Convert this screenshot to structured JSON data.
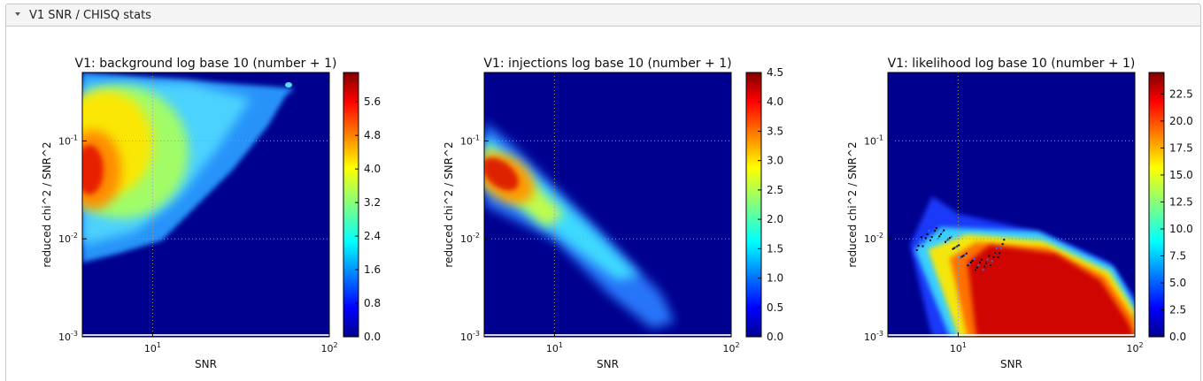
{
  "panel": {
    "title": "V1 SNR / CHISQ stats"
  },
  "chart_data": [
    {
      "type": "heatmap",
      "title": "V1: background log base 10 (number + 1)",
      "xlabel": "SNR",
      "ylabel": "reduced chi^2 / SNR^2",
      "xscale": "log",
      "yscale": "log",
      "xlim": [
        4,
        100
      ],
      "ylim": [
        0.001,
        0.5
      ],
      "xticks": [
        {
          "base": "10",
          "exp": "1",
          "value": 10
        },
        {
          "base": "10",
          "exp": "2",
          "value": 100
        }
      ],
      "yticks": [
        {
          "base": "10",
          "exp": "-1",
          "value": 0.1
        },
        {
          "base": "10",
          "exp": "-2",
          "value": 0.01
        },
        {
          "base": "10",
          "exp": "-3",
          "value": 0.001
        }
      ],
      "grid": true,
      "colorbar": {
        "min": 0,
        "max": 6.3,
        "ticks": [
          "0.0",
          "0.8",
          "1.6",
          "2.4",
          "3.2",
          "4.0",
          "4.8",
          "5.6"
        ]
      },
      "colormap": "jet"
    },
    {
      "type": "heatmap",
      "title": "V1: injections log base 10 (number + 1)",
      "xlabel": "SNR",
      "ylabel": "reduced chi^2 / SNR^2",
      "xscale": "log",
      "yscale": "log",
      "xlim": [
        4,
        100
      ],
      "ylim": [
        0.001,
        0.5
      ],
      "xticks": [
        {
          "base": "10",
          "exp": "1",
          "value": 10
        },
        {
          "base": "10",
          "exp": "2",
          "value": 100
        }
      ],
      "yticks": [
        {
          "base": "10",
          "exp": "-1",
          "value": 0.1
        },
        {
          "base": "10",
          "exp": "-2",
          "value": 0.01
        },
        {
          "base": "10",
          "exp": "-3",
          "value": 0.001
        }
      ],
      "grid": true,
      "colorbar": {
        "min": 0,
        "max": 4.5,
        "ticks": [
          "0.0",
          "0.5",
          "1.0",
          "1.5",
          "2.0",
          "2.5",
          "3.0",
          "3.5",
          "4.0",
          "4.5"
        ]
      },
      "colormap": "jet"
    },
    {
      "type": "heatmap",
      "title": "V1: likelihood log base 10 (number + 1)",
      "xlabel": "SNR",
      "ylabel": "reduced chi^2 / SNR^2",
      "xscale": "log",
      "yscale": "log",
      "xlim": [
        4,
        100
      ],
      "ylim": [
        0.001,
        0.5
      ],
      "xticks": [
        {
          "base": "10",
          "exp": "1",
          "value": 10
        },
        {
          "base": "10",
          "exp": "2",
          "value": 100
        }
      ],
      "yticks": [
        {
          "base": "10",
          "exp": "-1",
          "value": 0.1
        },
        {
          "base": "10",
          "exp": "-2",
          "value": 0.01
        },
        {
          "base": "10",
          "exp": "-3",
          "value": 0.001
        }
      ],
      "grid": true,
      "colorbar": {
        "min": 0,
        "max": 24.5,
        "ticks": [
          "0.0",
          "2.5",
          "5.0",
          "7.5",
          "10.0",
          "12.5",
          "15.0",
          "17.5",
          "20.0",
          "22.5"
        ]
      },
      "colormap": "jet"
    }
  ]
}
